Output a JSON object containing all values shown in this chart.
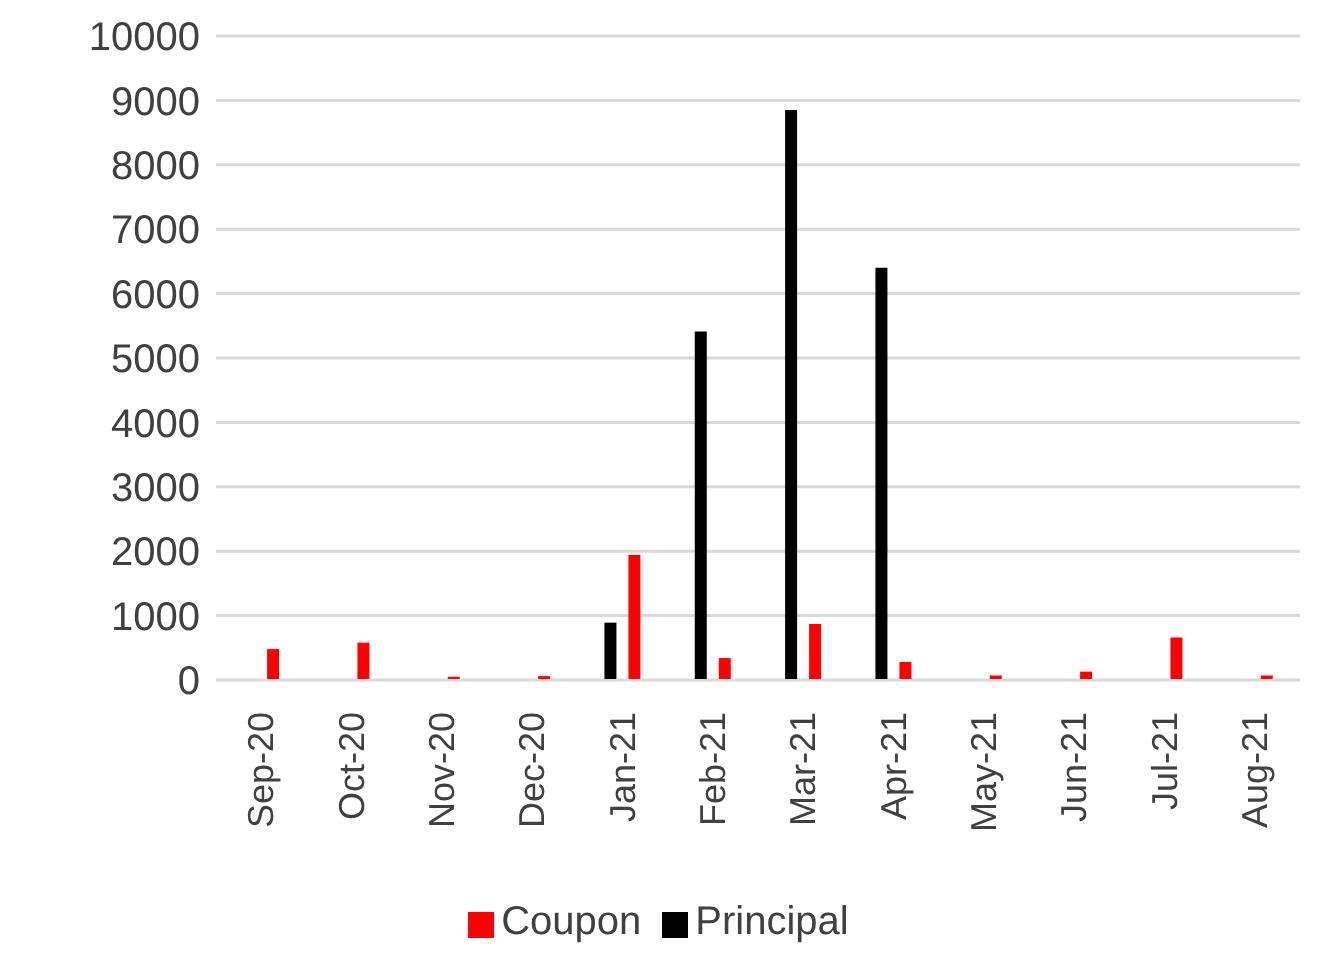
{
  "chart_data": {
    "type": "bar",
    "categories": [
      "Sep-20",
      "Oct-20",
      "Nov-20",
      "Dec-20",
      "Jan-21",
      "Feb-21",
      "Mar-21",
      "Apr-21",
      "May-21",
      "Jun-21",
      "Jul-21",
      "Aug-21"
    ],
    "series": [
      {
        "name": "Principal",
        "color": "#000000",
        "values": [
          0,
          0,
          0,
          0,
          890,
          5410,
          8850,
          6400,
          0,
          0,
          0,
          0
        ]
      },
      {
        "name": "Coupon",
        "color": "#ff0000",
        "values": [
          480,
          580,
          50,
          60,
          1940,
          340,
          870,
          280,
          70,
          130,
          660,
          70
        ]
      }
    ],
    "ylim": [
      0,
      10000
    ],
    "yticks": [
      0,
      1000,
      2000,
      3000,
      4000,
      5000,
      6000,
      7000,
      8000,
      9000,
      10000
    ],
    "grid": "y",
    "legend": "bottom"
  }
}
